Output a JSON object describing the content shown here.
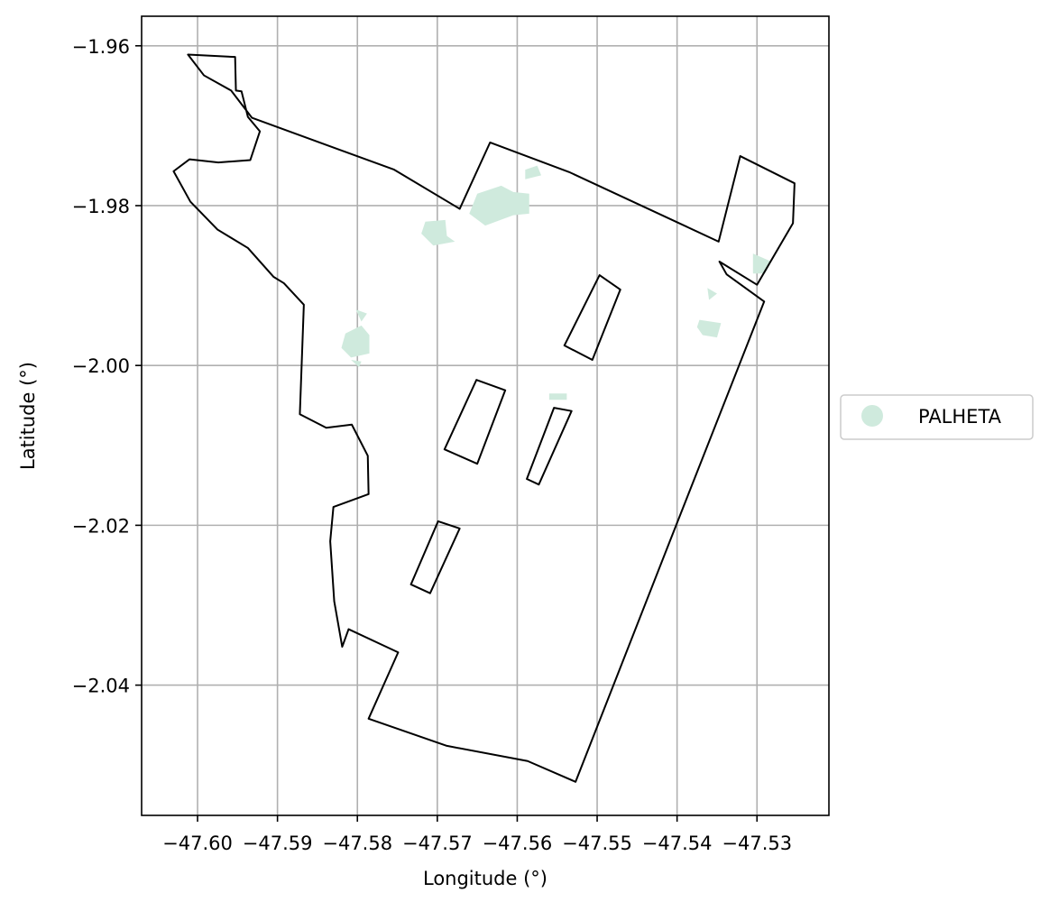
{
  "chart_data": {
    "type": "map",
    "xlabel": "Longitude (°)",
    "ylabel": "Latitude (°)",
    "xlim": [
      -47.607,
      -47.521
    ],
    "ylim": [
      -2.0563,
      -1.9563
    ],
    "x_ticks": [
      -47.6,
      -47.59,
      -47.58,
      -47.57,
      -47.56,
      -47.55,
      -47.54,
      -47.53
    ],
    "y_ticks": [
      -1.96,
      -1.98,
      -2.0,
      -2.02,
      -2.04
    ],
    "x_tick_labels": [
      "−47.60",
      "−47.59",
      "−47.58",
      "−47.57",
      "−47.56",
      "−47.55",
      "−47.54",
      "−47.53"
    ],
    "y_tick_labels": [
      "−1.96",
      "−1.98",
      "−2.00",
      "−2.02",
      "−2.04"
    ],
    "grid": true,
    "legend": {
      "placement": "center-right-outside",
      "entries": [
        {
          "label": "PALHETA",
          "color": "#cfeadd"
        }
      ]
    },
    "boundary_color": "#000000",
    "boundary_outer": [
      [
        -47.6012,
        -1.9611
      ],
      [
        -47.5953,
        -1.9614
      ],
      [
        -47.5952,
        -1.9656
      ],
      [
        -47.5945,
        -1.9657
      ],
      [
        -47.5937,
        -1.9689
      ],
      [
        -47.5922,
        -1.9707
      ],
      [
        -47.5934,
        -1.9743
      ],
      [
        -47.5974,
        -1.9746
      ],
      [
        -47.601,
        -1.9742
      ],
      [
        -47.603,
        -1.9757
      ],
      [
        -47.6009,
        -1.9795
      ],
      [
        -47.5975,
        -1.983
      ],
      [
        -47.5937,
        -1.9853
      ],
      [
        -47.5905,
        -1.9889
      ],
      [
        -47.5892,
        -1.9897
      ],
      [
        -47.5867,
        -1.9924
      ],
      [
        -47.5872,
        -2.0061
      ],
      [
        -47.5839,
        -2.0078
      ],
      [
        -47.5807,
        -2.0074
      ],
      [
        -47.5787,
        -2.0113
      ],
      [
        -47.5786,
        -2.0161
      ],
      [
        -47.583,
        -2.0177
      ],
      [
        -47.5834,
        -2.022
      ],
      [
        -47.5829,
        -2.0295
      ],
      [
        -47.5819,
        -2.0352
      ],
      [
        -47.5811,
        -2.033
      ],
      [
        -47.5749,
        -2.0359
      ],
      [
        -47.5786,
        -2.0442
      ],
      [
        -47.5688,
        -2.0476
      ],
      [
        -47.5587,
        -2.0495
      ],
      [
        -47.5527,
        -2.0521
      ],
      [
        -47.5411,
        -2.0225
      ],
      [
        -47.5291,
        -1.992
      ],
      [
        -47.5338,
        -1.9886
      ],
      [
        -47.5347,
        -1.987
      ],
      [
        -47.53,
        -1.9899
      ],
      [
        -47.5255,
        -1.9822
      ],
      [
        -47.5253,
        -1.9772
      ],
      [
        -47.5321,
        -1.9738
      ],
      [
        -47.5348,
        -1.9845
      ],
      [
        -47.5535,
        -1.9758
      ],
      [
        -47.5634,
        -1.9721
      ],
      [
        -47.5672,
        -1.9804
      ],
      [
        -47.5754,
        -1.9755
      ],
      [
        -47.5932,
        -1.969
      ],
      [
        -47.5958,
        -1.9656
      ],
      [
        -47.5992,
        -1.9637
      ],
      [
        -47.6012,
        -1.9611
      ]
    ],
    "boundary_holes": [
      [
        [
          -47.5651,
          -2.0018
        ],
        [
          -47.5615,
          -2.0031
        ],
        [
          -47.565,
          -2.0123
        ],
        [
          -47.5691,
          -2.0105
        ],
        [
          -47.5651,
          -2.0018
        ]
      ],
      [
        [
          -47.5554,
          -2.0053
        ],
        [
          -47.5532,
          -2.0057
        ],
        [
          -47.5573,
          -2.0149
        ],
        [
          -47.5588,
          -2.0142
        ],
        [
          -47.5554,
          -2.0053
        ]
      ],
      [
        [
          -47.5497,
          -1.9887
        ],
        [
          -47.5471,
          -1.9905
        ],
        [
          -47.5506,
          -1.9993
        ],
        [
          -47.5541,
          -1.9975
        ],
        [
          -47.5497,
          -1.9887
        ]
      ],
      [
        [
          -47.5699,
          -2.0195
        ],
        [
          -47.5672,
          -2.0204
        ],
        [
          -47.5709,
          -2.0285
        ],
        [
          -47.5733,
          -2.0274
        ],
        [
          -47.5699,
          -2.0195
        ]
      ]
    ],
    "palheta_patches": [
      [
        [
          -47.5715,
          -1.982
        ],
        [
          -47.569,
          -1.9818
        ],
        [
          -47.5688,
          -1.9838
        ],
        [
          -47.5678,
          -1.9845
        ],
        [
          -47.5705,
          -1.985
        ],
        [
          -47.572,
          -1.9835
        ],
        [
          -47.5715,
          -1.982
        ]
      ],
      [
        [
          -47.565,
          -1.9785
        ],
        [
          -47.562,
          -1.9775
        ],
        [
          -47.5605,
          -1.9783
        ],
        [
          -47.5585,
          -1.9785
        ],
        [
          -47.5585,
          -1.981
        ],
        [
          -47.5605,
          -1.9812
        ],
        [
          -47.564,
          -1.9825
        ],
        [
          -47.566,
          -1.981
        ],
        [
          -47.565,
          -1.9785
        ]
      ],
      [
        [
          -47.559,
          -1.9755
        ],
        [
          -47.5575,
          -1.975
        ],
        [
          -47.557,
          -1.9762
        ],
        [
          -47.559,
          -1.9767
        ],
        [
          -47.559,
          -1.9755
        ]
      ],
      [
        [
          -47.5815,
          -1.996
        ],
        [
          -47.5795,
          -1.995
        ],
        [
          -47.5785,
          -1.9962
        ],
        [
          -47.5785,
          -1.9985
        ],
        [
          -47.5808,
          -1.999
        ],
        [
          -47.582,
          -1.9978
        ],
        [
          -47.5815,
          -1.996
        ]
      ],
      [
        [
          -47.5802,
          -1.993
        ],
        [
          -47.5788,
          -1.9935
        ],
        [
          -47.5795,
          -1.9945
        ],
        [
          -47.5802,
          -1.993
        ]
      ],
      [
        [
          -47.5808,
          -1.9993
        ],
        [
          -47.5795,
          -1.9995
        ],
        [
          -47.5798,
          -2.0002
        ],
        [
          -47.5808,
          -1.9993
        ]
      ],
      [
        [
          -47.556,
          -2.0035
        ],
        [
          -47.5538,
          -2.0035
        ],
        [
          -47.5538,
          -2.0043
        ],
        [
          -47.556,
          -2.0043
        ],
        [
          -47.556,
          -2.0035
        ]
      ],
      [
        [
          -47.5372,
          -1.9943
        ],
        [
          -47.5345,
          -1.9947
        ],
        [
          -47.535,
          -1.9965
        ],
        [
          -47.5368,
          -1.9962
        ],
        [
          -47.5375,
          -1.9952
        ],
        [
          -47.5372,
          -1.9943
        ]
      ],
      [
        [
          -47.5362,
          -1.9903
        ],
        [
          -47.535,
          -1.991
        ],
        [
          -47.536,
          -1.9918
        ],
        [
          -47.5362,
          -1.9903
        ]
      ],
      [
        [
          -47.5305,
          -1.986
        ],
        [
          -47.5282,
          -1.987
        ],
        [
          -47.529,
          -1.9885
        ],
        [
          -47.5305,
          -1.9885
        ],
        [
          -47.5305,
          -1.986
        ]
      ]
    ]
  }
}
